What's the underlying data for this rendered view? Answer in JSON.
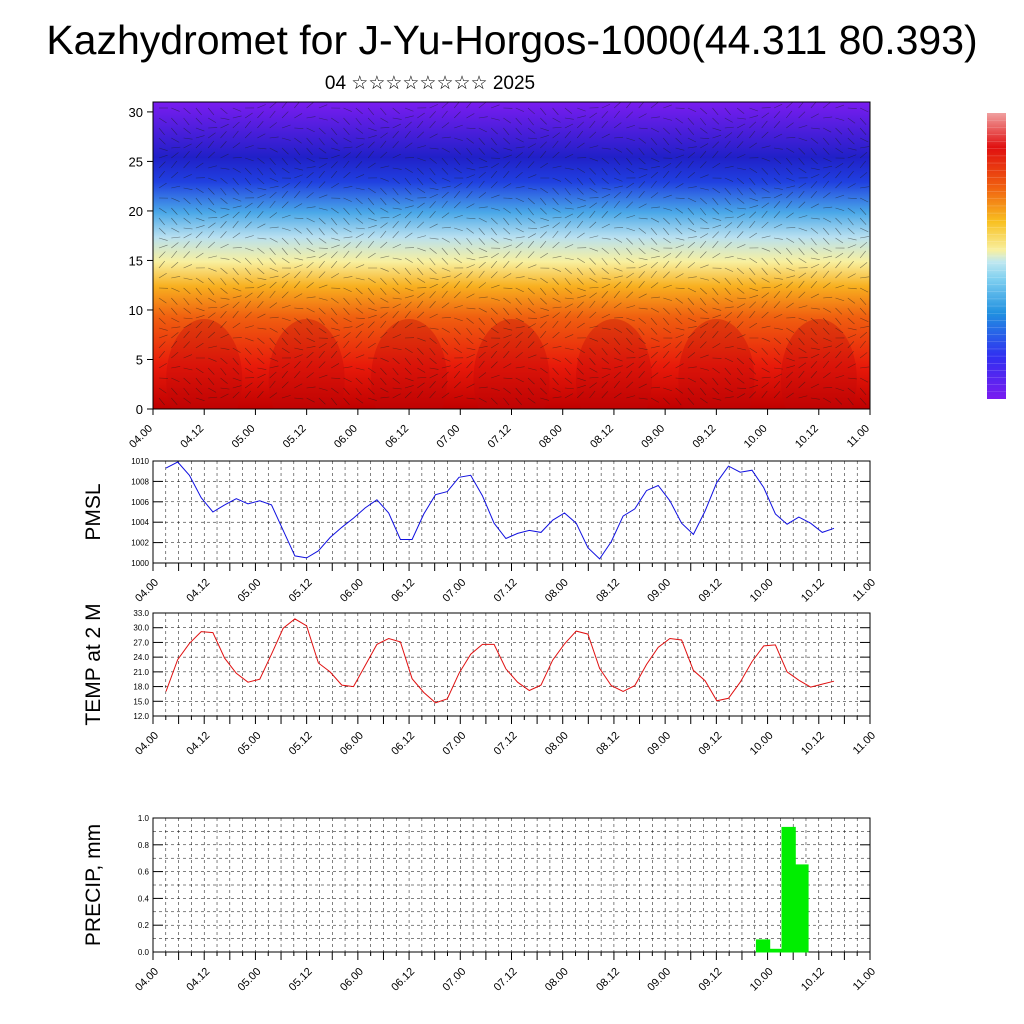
{
  "header": {
    "title": "Kazhydromet for J-Yu-Horgos-1000(44.311 80.393)",
    "subtitle": "04 ☆☆☆☆☆☆☆☆ 2025"
  },
  "colors": {
    "pmsl_line": "#1010e0",
    "temp_line": "#e01010",
    "precip_bar": "#00ee00",
    "colorbar_stops": [
      "#7a1cf0",
      "#3030f0",
      "#2090e0",
      "#80d0f0",
      "#f8f0a0",
      "#f8c020",
      "#f06010",
      "#e01010",
      "#f0a0a0"
    ]
  },
  "chart_data": [
    {
      "type": "heatmap",
      "description_axis": "vertical cross-section over time with wind barbs",
      "x_ticks": [
        "04.00",
        "04.12",
        "05.00",
        "05.12",
        "06.00",
        "06.12",
        "07.00",
        "07.12",
        "08.00",
        "08.12",
        "09.00",
        "09.12",
        "10.00",
        "10.12",
        "11.00"
      ],
      "y_ticks": [
        "0",
        "5",
        "10",
        "15",
        "20",
        "25",
        "30"
      ],
      "ylim": [
        0,
        31
      ],
      "colorbar": true
    },
    {
      "type": "line",
      "ylabel": "PMSL",
      "x_ticks": [
        "04.00",
        "04.12",
        "05.00",
        "05.12",
        "06.00",
        "06.12",
        "07.00",
        "07.12",
        "08.00",
        "08.12",
        "09.00",
        "09.12",
        "10.00",
        "10.12",
        "11.00"
      ],
      "y_ticks": [
        "1000",
        "1002",
        "1004",
        "1006",
        "1008",
        "1010"
      ],
      "ylim": [
        1000,
        1010
      ],
      "values": [
        1009.3,
        1009.9,
        1008.6,
        1006.4,
        1005.0,
        1005.7,
        1006.3,
        1005.8,
        1006.1,
        1005.7,
        1003.2,
        1000.7,
        1000.5,
        1001.2,
        1002.5,
        1003.5,
        1004.4,
        1005.4,
        1006.2,
        1004.9,
        1002.3,
        1002.3,
        1004.8,
        1006.7,
        1007.0,
        1008.4,
        1008.6,
        1006.6,
        1003.9,
        1002.4,
        1002.9,
        1003.2,
        1003.0,
        1004.2,
        1004.9,
        1003.9,
        1001.5,
        1000.4,
        1002.1,
        1004.6,
        1005.3,
        1007.1,
        1007.6,
        1006.1,
        1003.9,
        1002.8,
        1005.1,
        1007.9,
        1009.5,
        1008.9,
        1009.1,
        1007.4,
        1004.8,
        1003.8,
        1004.5,
        1003.9,
        1003.0,
        1003.4
      ]
    },
    {
      "type": "line",
      "ylabel": "TEMP at 2 M",
      "x_ticks": [
        "04.00",
        "04.12",
        "05.00",
        "05.12",
        "06.00",
        "06.12",
        "07.00",
        "07.12",
        "08.00",
        "08.12",
        "09.00",
        "09.12",
        "10.00",
        "10.12",
        "11.00"
      ],
      "y_ticks": [
        "12.0",
        "15.0",
        "18.0",
        "21.0",
        "24.0",
        "27.0",
        "30.0",
        "33.0"
      ],
      "ylim": [
        12,
        33
      ],
      "values": [
        17.0,
        23.5,
        26.8,
        29.2,
        29.0,
        23.8,
        20.7,
        18.9,
        19.5,
        24.6,
        29.9,
        31.8,
        30.4,
        22.8,
        21.0,
        18.3,
        18.0,
        22.3,
        26.6,
        27.8,
        27.1,
        19.6,
        16.8,
        14.7,
        15.5,
        20.7,
        24.6,
        26.6,
        26.6,
        21.6,
        18.9,
        17.2,
        18.3,
        23.4,
        26.7,
        29.3,
        28.7,
        21.7,
        18.2,
        17.0,
        18.2,
        22.5,
        26.0,
        27.8,
        27.5,
        21.3,
        19.2,
        15.1,
        15.6,
        18.9,
        23.1,
        26.3,
        26.5,
        21.0,
        19.3,
        17.9,
        18.5,
        19.1
      ]
    },
    {
      "type": "bar",
      "ylabel": "PRECIP, mm",
      "x_ticks": [
        "04.00",
        "04.12",
        "05.00",
        "05.12",
        "06.00",
        "06.12",
        "07.00",
        "07.12",
        "08.00",
        "08.12",
        "09.00",
        "09.12",
        "10.00",
        "10.12",
        "11.00"
      ],
      "y_ticks": [
        "0.0",
        "0.2",
        "0.4",
        "0.6",
        "0.8",
        "1.0"
      ],
      "ylim": [
        0,
        1.0
      ],
      "bars": [
        {
          "step": 47,
          "value": 0.09
        },
        {
          "step": 48,
          "value": 0.02
        },
        {
          "step": 49,
          "value": 0.93
        },
        {
          "step": 50,
          "value": 0.65
        }
      ]
    }
  ]
}
